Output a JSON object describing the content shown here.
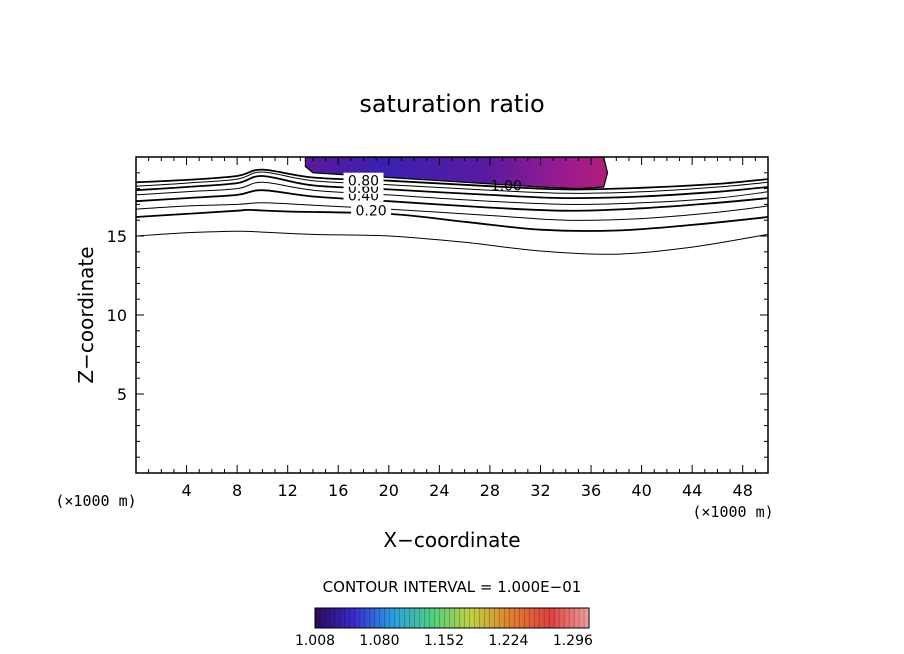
{
  "chart_data": {
    "type": "contour",
    "title": "saturation ratio",
    "xlabel": "X−coordinate",
    "ylabel": "Z−coordinate",
    "x_unit": "(×1000 m)",
    "y_unit": "(×1000 m)",
    "xlim": [
      0,
      50
    ],
    "ylim": [
      0,
      20
    ],
    "x_ticks": [
      "4",
      "8",
      "12",
      "16",
      "20",
      "24",
      "28",
      "32",
      "36",
      "40",
      "44",
      "48"
    ],
    "y_ticks": [
      "5",
      "10",
      "15"
    ],
    "contour_interval_text": "CONTOUR INTERVAL = 1.000E−01",
    "contour_labels": [
      "0.20",
      "0.40",
      "0.60",
      "0.80",
      "1.00"
    ],
    "colorbar": {
      "min": 1.008,
      "max": 1.314,
      "tick_labels": [
        "1.008",
        "1.080",
        "1.152",
        "1.224",
        "1.296"
      ],
      "colors": [
        "#2a0a5a",
        "#3a2ad0",
        "#2aa0e0",
        "#50d080",
        "#c0d040",
        "#e08030",
        "#e04040",
        "#f0a0a0"
      ]
    },
    "contours": [
      {
        "level": 0.1,
        "x": [
          0,
          4,
          8,
          10,
          14,
          20,
          26,
          32,
          38,
          44,
          50
        ],
        "z": [
          15.0,
          15.2,
          15.3,
          15.25,
          15.1,
          15.0,
          14.6,
          14.05,
          13.85,
          14.3,
          15.1
        ]
      },
      {
        "level": 0.2,
        "x": [
          0,
          4,
          8,
          9,
          12,
          20,
          26,
          32,
          38,
          44,
          50
        ],
        "z": [
          16.2,
          16.4,
          16.6,
          16.65,
          16.55,
          16.4,
          15.9,
          15.4,
          15.35,
          15.7,
          16.2
        ]
      },
      {
        "level": 0.3,
        "x": [
          0,
          4,
          8,
          10,
          14,
          20,
          28,
          34,
          40,
          46,
          50
        ],
        "z": [
          16.7,
          16.9,
          17.0,
          17.1,
          16.95,
          16.7,
          16.3,
          16.0,
          16.1,
          16.5,
          16.9
        ]
      },
      {
        "level": 0.4,
        "x": [
          0,
          4,
          8,
          10,
          14,
          20,
          28,
          34,
          40,
          46,
          50
        ],
        "z": [
          17.2,
          17.4,
          17.6,
          17.9,
          17.5,
          17.2,
          16.8,
          16.6,
          16.75,
          17.1,
          17.4
        ]
      },
      {
        "level": 0.5,
        "x": [
          0,
          4,
          8,
          10,
          14,
          20,
          28,
          34,
          40,
          46,
          50
        ],
        "z": [
          17.6,
          17.8,
          18.0,
          18.4,
          17.9,
          17.6,
          17.2,
          17.0,
          17.1,
          17.4,
          17.8
        ]
      },
      {
        "level": 0.6,
        "x": [
          0,
          4,
          8,
          10,
          14,
          20,
          28,
          34,
          40,
          46,
          50
        ],
        "z": [
          17.9,
          18.1,
          18.35,
          18.8,
          18.2,
          17.95,
          17.6,
          17.4,
          17.5,
          17.8,
          18.1
        ]
      },
      {
        "level": 0.7,
        "x": [
          0,
          4,
          8,
          10,
          14,
          20,
          28,
          34,
          40,
          46,
          50
        ],
        "z": [
          18.15,
          18.35,
          18.6,
          19.05,
          18.5,
          18.25,
          17.9,
          17.7,
          17.8,
          18.1,
          18.4
        ]
      },
      {
        "level": 0.8,
        "x": [
          0,
          4,
          8,
          10,
          14,
          20,
          28,
          34,
          40,
          46,
          50
        ],
        "z": [
          18.4,
          18.55,
          18.8,
          19.2,
          18.7,
          18.5,
          18.15,
          17.95,
          18.05,
          18.3,
          18.6
        ]
      }
    ],
    "shaded_region": {
      "description_level": "> 1.00",
      "x": [
        13.4,
        14,
        16,
        20,
        24,
        28,
        32,
        35,
        37.0,
        37.3,
        37.0,
        36.5,
        13.4
      ],
      "z": [
        19.4,
        19.0,
        18.9,
        18.7,
        18.5,
        18.3,
        18.1,
        18.0,
        18.1,
        19.0,
        20.0,
        20.0,
        20.0
      ]
    }
  }
}
